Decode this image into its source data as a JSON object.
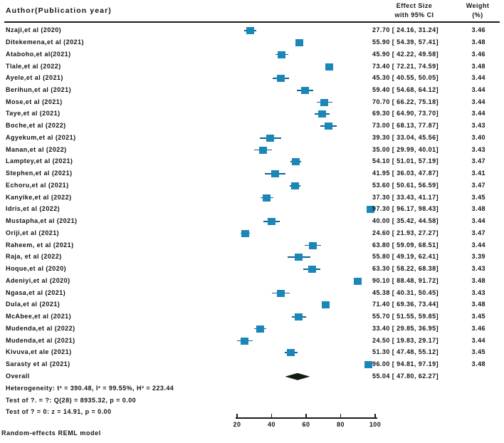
{
  "header": {
    "author_col": "Author(Publication year)",
    "effect_col_line1": "Effect Size",
    "effect_col_line2": "with 95% CI",
    "weight_col_line1": "Weight",
    "weight_col_line2": "(%)"
  },
  "chart_data": {
    "type": "forest",
    "title": "",
    "xlabel": "",
    "x_axis": {
      "min": 20,
      "max": 100,
      "ticks": [
        20,
        40,
        60,
        80,
        100
      ]
    },
    "colors": {
      "marker": "#1b87b8",
      "ci": "#15628b",
      "diamond": "#131c13",
      "rule": "#1a1a1a"
    },
    "studies": [
      {
        "label": "Nzaji,et al (2020)",
        "es": 27.7,
        "lo": 24.16,
        "hi": 31.24,
        "weight": 3.46
      },
      {
        "label": "Ditekemena,et al (2021)",
        "es": 55.9,
        "lo": 54.39,
        "hi": 57.41,
        "weight": 3.48
      },
      {
        "label": "Ataboho,et al(2021)",
        "es": 45.9,
        "lo": 42.22,
        "hi": 49.58,
        "weight": 3.46
      },
      {
        "label": "Tlale,et al (2022)",
        "es": 73.4,
        "lo": 72.21,
        "hi": 74.59,
        "weight": 3.48
      },
      {
        "label": "Ayele,et al (2021)",
        "es": 45.3,
        "lo": 40.55,
        "hi": 50.05,
        "weight": 3.44
      },
      {
        "label": "Berihun,et al (2021)",
        "es": 59.4,
        "lo": 54.68,
        "hi": 64.12,
        "weight": 3.44
      },
      {
        "label": "Mose,et al (2021)",
        "es": 70.7,
        "lo": 66.22,
        "hi": 75.18,
        "weight": 3.44
      },
      {
        "label": "Taye,et al (2021)",
        "es": 69.3,
        "lo": 64.9,
        "hi": 73.7,
        "weight": 3.44
      },
      {
        "label": "Boche,et al (2022)",
        "es": 73.0,
        "lo": 68.13,
        "hi": 77.87,
        "weight": 3.43
      },
      {
        "label": "Agyekum,et al (2021)",
        "es": 39.3,
        "lo": 33.04,
        "hi": 45.56,
        "weight": 3.4
      },
      {
        "label": "Manan,et al (2022)",
        "es": 35.0,
        "lo": 29.99,
        "hi": 40.01,
        "weight": 3.43
      },
      {
        "label": "Lamptey,et al (2021)",
        "es": 54.1,
        "lo": 51.01,
        "hi": 57.19,
        "weight": 3.47
      },
      {
        "label": "Stephen,et al (2021)",
        "es": 41.95,
        "lo": 36.03,
        "hi": 47.87,
        "weight": 3.41
      },
      {
        "label": "Echoru,et al (2021)",
        "es": 53.6,
        "lo": 50.61,
        "hi": 56.59,
        "weight": 3.47
      },
      {
        "label": "Kanyike,et al (2022)",
        "es": 37.3,
        "lo": 33.43,
        "hi": 41.17,
        "weight": 3.45
      },
      {
        "label": "Idris,et al (2022)",
        "es": 97.3,
        "lo": 96.17,
        "hi": 98.43,
        "weight": 3.48
      },
      {
        "label": "Mustapha,et al (2021)",
        "es": 40.0,
        "lo": 35.42,
        "hi": 44.58,
        "weight": 3.44
      },
      {
        "label": "Oriji,et al (2021)",
        "es": 24.6,
        "lo": 21.93,
        "hi": 27.27,
        "weight": 3.47
      },
      {
        "label": "Raheem, et al (2021)",
        "es": 63.8,
        "lo": 59.09,
        "hi": 68.51,
        "weight": 3.44
      },
      {
        "label": "Raja, et al (2022)",
        "es": 55.8,
        "lo": 49.19,
        "hi": 62.41,
        "weight": 3.39
      },
      {
        "label": "Hoque,et al (2020)",
        "es": 63.3,
        "lo": 58.22,
        "hi": 68.38,
        "weight": 3.43
      },
      {
        "label": "Adeniyi,et al (2020)",
        "es": 90.1,
        "lo": 88.48,
        "hi": 91.72,
        "weight": 3.48
      },
      {
        "label": "Ngasa,et al (2021)",
        "es": 45.38,
        "lo": 40.31,
        "hi": 50.45,
        "weight": 3.43
      },
      {
        "label": "Dula,et al (2021)",
        "es": 71.4,
        "lo": 69.36,
        "hi": 73.44,
        "weight": 3.48
      },
      {
        "label": "McAbee,et al (2021)",
        "es": 55.7,
        "lo": 51.55,
        "hi": 59.85,
        "weight": 3.45
      },
      {
        "label": "Mudenda,et al (2022)",
        "es": 33.4,
        "lo": 29.85,
        "hi": 36.95,
        "weight": 3.46
      },
      {
        "label": "Mudenda,et al (2021)",
        "es": 24.5,
        "lo": 19.83,
        "hi": 29.17,
        "weight": 3.44
      },
      {
        "label": "Kivuva,et ale (2021)",
        "es": 51.3,
        "lo": 47.48,
        "hi": 55.12,
        "weight": 3.45
      },
      {
        "label": "Sarasty et al (2021)",
        "es": 96.0,
        "lo": 94.81,
        "hi": 97.19,
        "weight": 3.48
      }
    ],
    "overall": {
      "label": "Overall",
      "es": 55.04,
      "lo": 47.8,
      "hi": 62.27,
      "display": "55.04 [  47.80,  62.27]"
    },
    "notes": [
      "Heterogeneity: t² = 390.48, I² = 99.55%, H² = 223.44",
      "Test of ?. = ?: Q(28) = 8935.32, p = 0.00",
      "Test of ? = 0: z = 14.91, p = 0.00"
    ],
    "footer": "Random-effects REML model"
  }
}
